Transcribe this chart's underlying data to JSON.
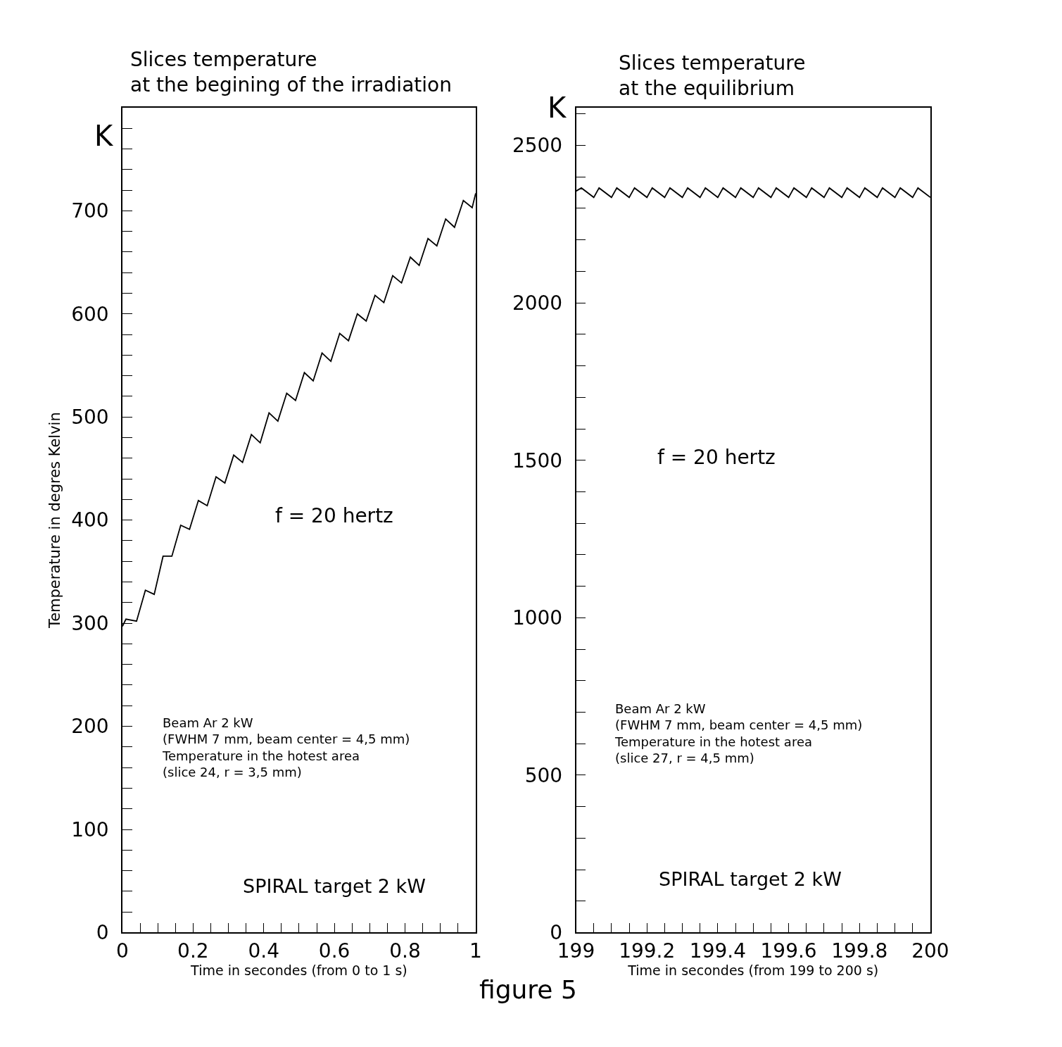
{
  "chart_data": [
    {
      "type": "line",
      "title": "Slices temperature\nat the begining of the irradiation",
      "xlabel": "Time in secondes (from 0 to 1 s)",
      "ylabel": "Temperature in degres Kelvin",
      "annotations": [
        "K",
        "f = 20 hertz",
        "Beam Ar 2 kW\n(FWHM 7 mm, beam center = 4,5 mm)\nTemperature in the hotest area\n(slice 24, r = 3,5 mm)",
        "SPIRAL target 2 kW",
        "figure 5"
      ],
      "x": [
        0,
        0.01,
        0.04,
        0.065,
        0.09,
        0.115,
        0.14,
        0.165,
        0.19,
        0.215,
        0.24,
        0.265,
        0.29,
        0.315,
        0.34,
        0.365,
        0.39,
        0.415,
        0.44,
        0.465,
        0.49,
        0.515,
        0.54,
        0.565,
        0.59,
        0.615,
        0.64,
        0.665,
        0.69,
        0.715,
        0.74,
        0.765,
        0.79,
        0.815,
        0.84,
        0.865,
        0.89,
        0.915,
        0.94,
        0.965,
        0.99,
        1
      ],
      "series": [
        {
          "color": "#000000",
          "values": [
            297,
            304,
            302,
            332,
            328,
            365,
            365,
            395,
            391,
            419,
            414,
            442,
            436,
            463,
            456,
            483,
            475,
            504,
            496,
            523,
            516,
            543,
            535,
            562,
            554,
            581,
            574,
            600,
            593,
            618,
            611,
            637,
            630,
            655,
            647,
            673,
            666,
            692,
            684,
            710,
            703,
            717
          ]
        }
      ],
      "xlim": [
        0,
        1
      ],
      "ylim": [
        0,
        800
      ],
      "xticks": [
        0,
        {
          "value": 0.05,
          "label": null
        },
        {
          "value": 0.1,
          "label": null
        },
        {
          "value": 0.15,
          "label": null
        },
        0.2,
        {
          "value": 0.25,
          "label": null
        },
        {
          "value": 0.3,
          "label": null
        },
        {
          "value": 0.35,
          "label": null
        },
        0.4,
        {
          "value": 0.45,
          "label": null
        },
        {
          "value": 0.5,
          "label": null
        },
        {
          "value": 0.55,
          "label": null
        },
        0.6,
        {
          "value": 0.65,
          "label": null
        },
        {
          "value": 0.7,
          "label": null
        },
        {
          "value": 0.75,
          "label": null
        },
        0.8,
        {
          "value": 0.85,
          "label": null
        },
        {
          "value": 0.9,
          "label": null
        },
        {
          "value": 0.95,
          "label": null
        },
        1
      ],
      "yticks": [
        0,
        {
          "value": 20,
          "label": null
        },
        {
          "value": 40,
          "label": null
        },
        {
          "value": 60,
          "label": null
        },
        {
          "value": 80,
          "label": null
        },
        100,
        {
          "value": 120,
          "label": null
        },
        {
          "value": 140,
          "label": null
        },
        {
          "value": 160,
          "label": null
        },
        {
          "value": 180,
          "label": null
        },
        200,
        {
          "value": 220,
          "label": null
        },
        {
          "value": 240,
          "label": null
        },
        {
          "value": 260,
          "label": null
        },
        {
          "value": 280,
          "label": null
        },
        300,
        {
          "value": 320,
          "label": null
        },
        {
          "value": 340,
          "label": null
        },
        {
          "value": 360,
          "label": null
        },
        {
          "value": 380,
          "label": null
        },
        400,
        {
          "value": 420,
          "label": null
        },
        {
          "value": 440,
          "label": null
        },
        {
          "value": 460,
          "label": null
        },
        {
          "value": 480,
          "label": null
        },
        500,
        {
          "value": 520,
          "label": null
        },
        {
          "value": 540,
          "label": null
        },
        {
          "value": 560,
          "label": null
        },
        {
          "value": 580,
          "label": null
        },
        600,
        {
          "value": 620,
          "label": null
        },
        {
          "value": 640,
          "label": null
        },
        {
          "value": 660,
          "label": null
        },
        {
          "value": 680,
          "label": null
        },
        700,
        {
          "value": 720,
          "label": null
        },
        {
          "value": 740,
          "label": null
        },
        {
          "value": 760,
          "label": null
        },
        {
          "value": 780,
          "label": null
        }
      ]
    },
    {
      "type": "line",
      "title": "Slices temperature\nat the equilibrium",
      "xlabel": "Time in secondes (from 199 to 200 s)",
      "annotations": [
        "K",
        "f = 20 hertz",
        "Beam Ar 2 kW\n(FWHM 7 mm, beam center = 4,5 mm)\nTemperature in the hotest area\n(slice 27, r = 4,5 mm)",
        "SPIRAL target 2 kW"
      ],
      "x": [
        199,
        199.015,
        199.05,
        199.065,
        199.1,
        199.115,
        199.15,
        199.165,
        199.2,
        199.215,
        199.25,
        199.265,
        199.3,
        199.315,
        199.35,
        199.365,
        199.4,
        199.415,
        199.45,
        199.465,
        199.5,
        199.515,
        199.55,
        199.565,
        199.6,
        199.615,
        199.65,
        199.665,
        199.7,
        199.715,
        199.75,
        199.765,
        199.8,
        199.815,
        199.85,
        199.865,
        199.9,
        199.915,
        199.95,
        199.965,
        200
      ],
      "series": [
        {
          "color": "#000000",
          "values": [
            2355,
            2365,
            2335,
            2365,
            2335,
            2365,
            2335,
            2365,
            2335,
            2365,
            2335,
            2365,
            2335,
            2365,
            2335,
            2365,
            2335,
            2365,
            2335,
            2365,
            2335,
            2365,
            2335,
            2365,
            2335,
            2365,
            2335,
            2365,
            2335,
            2365,
            2335,
            2365,
            2335,
            2365,
            2335,
            2365,
            2335,
            2365,
            2335,
            2365,
            2335
          ]
        }
      ],
      "xlim": [
        199,
        200
      ],
      "ylim": [
        0,
        2620
      ],
      "xticks": [
        199,
        {
          "value": 199.05,
          "label": null
        },
        {
          "value": 199.1,
          "label": null
        },
        {
          "value": 199.15,
          "label": null
        },
        199.2,
        {
          "value": 199.25,
          "label": null
        },
        {
          "value": 199.3,
          "label": null
        },
        {
          "value": 199.35,
          "label": null
        },
        199.4,
        {
          "value": 199.45,
          "label": null
        },
        {
          "value": 199.5,
          "label": null
        },
        {
          "value": 199.55,
          "label": null
        },
        199.6,
        {
          "value": 199.65,
          "label": null
        },
        {
          "value": 199.7,
          "label": null
        },
        {
          "value": 199.75,
          "label": null
        },
        199.8,
        {
          "value": 199.85,
          "label": null
        },
        {
          "value": 199.9,
          "label": null
        },
        {
          "value": 199.95,
          "label": null
        },
        200
      ],
      "yticks": [
        0,
        {
          "value": 100,
          "label": null
        },
        {
          "value": 200,
          "label": null
        },
        {
          "value": 300,
          "label": null
        },
        {
          "value": 400,
          "label": null
        },
        500,
        {
          "value": 600,
          "label": null
        },
        {
          "value": 700,
          "label": null
        },
        {
          "value": 800,
          "label": null
        },
        {
          "value": 900,
          "label": null
        },
        1000,
        {
          "value": 1100,
          "label": null
        },
        {
          "value": 1200,
          "label": null
        },
        {
          "value": 1300,
          "label": null
        },
        {
          "value": 1400,
          "label": null
        },
        1500,
        {
          "value": 1600,
          "label": null
        },
        {
          "value": 1700,
          "label": null
        },
        {
          "value": 1800,
          "label": null
        },
        {
          "value": 1900,
          "label": null
        },
        2000,
        {
          "value": 2100,
          "label": null
        },
        {
          "value": 2200,
          "label": null
        },
        {
          "value": 2300,
          "label": null
        },
        {
          "value": 2400,
          "label": null
        },
        2500,
        {
          "value": 2600,
          "label": null
        }
      ]
    }
  ]
}
